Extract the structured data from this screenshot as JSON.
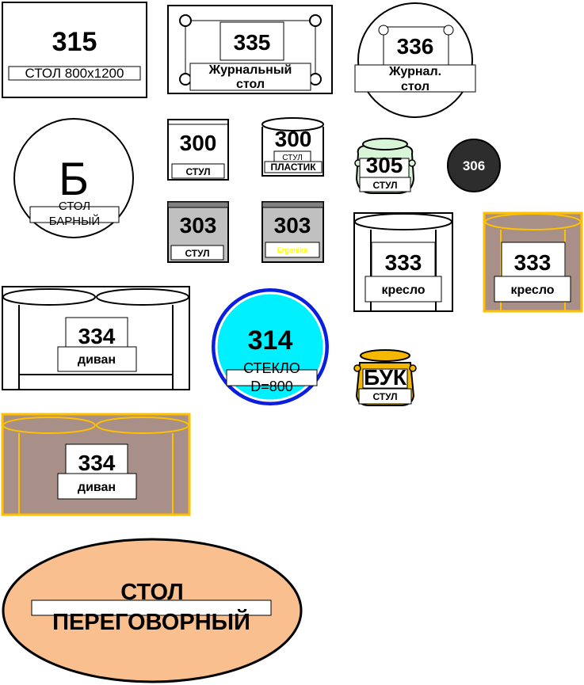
{
  "items": {
    "table_315": {
      "number": "315",
      "label": "СТОЛ 800x1200"
    },
    "coffee_335": {
      "number": "335",
      "label_line1": "Журнальный",
      "label_line2": "стол"
    },
    "coffee_336": {
      "number": "336",
      "label_line1": "Журнал.",
      "label_line2": "стол"
    },
    "bar_table": {
      "letter": "Б",
      "label_line1": "СТОЛ",
      "label_line2": "БАРНЫЙ"
    },
    "chair_300_a": {
      "number": "300",
      "label": "СТУЛ"
    },
    "chair_300_b": {
      "number": "300",
      "label_line1": "СТУЛ",
      "label_line2": "ПЛАСТИК"
    },
    "chair_305": {
      "number": "305",
      "label": "СТУЛ"
    },
    "stool_306": {
      "number": "306"
    },
    "chair_303_a": {
      "number": "303",
      "label": "СТУЛ"
    },
    "chair_303_b": {
      "number": "303",
      "label": "Ergonika"
    },
    "armchair_333_a": {
      "number": "333",
      "label": "кресло"
    },
    "armchair_333_b": {
      "number": "333",
      "label": "кресло"
    },
    "sofa_334_a": {
      "number": "334",
      "label": "диван"
    },
    "glass_314": {
      "number": "314",
      "label_line1": "СТЕКЛО",
      "label_line2": "D=800"
    },
    "chair_buk": {
      "number": "БУК",
      "label": "СТУЛ"
    },
    "sofa_334_b": {
      "number": "334",
      "label": "диван"
    },
    "meeting_table": {
      "label_line1": "СТОЛ",
      "label_line2": "ПЕРЕГОВОРНЫЙ"
    }
  },
  "colors": {
    "outline": "#000000",
    "chair_gray": "#c0c0c0",
    "chair_gray_top": "#808080",
    "chair_green": "#d8f5d8",
    "stool_dark": "#2d2d2d",
    "fabric_taupe": "#a89088",
    "frame_gold": "#ffc000",
    "glass_cyan": "#00f0ff",
    "glass_ring": "#0a1ee0",
    "buk_gold": "#f5b800",
    "meeting_peach": "#f9bf8f",
    "ergonika_yellow": "#ffff00"
  }
}
